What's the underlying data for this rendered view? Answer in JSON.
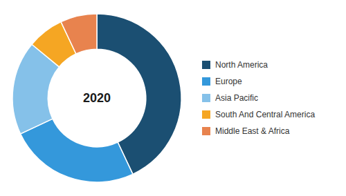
{
  "chart_data": {
    "type": "donut",
    "categories": [
      "North America",
      "Europe",
      "Asia Pacific",
      "South And Central America",
      "Middle East & Africa"
    ],
    "values": [
      43,
      25,
      18,
      7,
      7
    ],
    "colors": [
      "#1b4f72",
      "#3498db",
      "#85c1e9",
      "#f5a623",
      "#e8834e"
    ],
    "annotations": [
      "2020"
    ],
    "legend": "right"
  }
}
